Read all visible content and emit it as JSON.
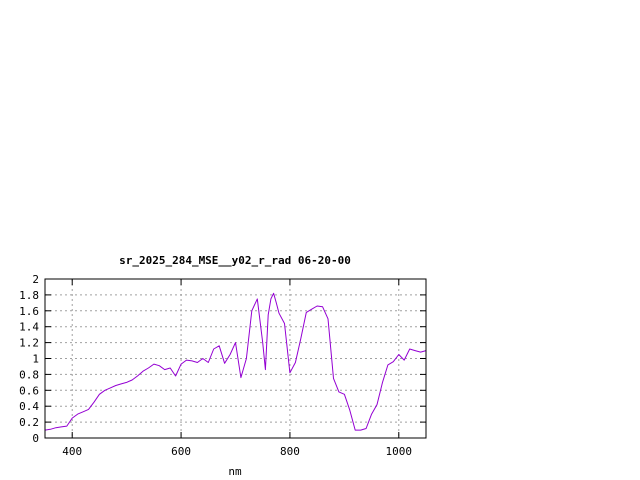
{
  "chart_data": {
    "type": "line",
    "title": "sr_2025_284_MSE__y02_r_rad 06-20-00",
    "xlabel": "nm",
    "ylabel": "",
    "xlim": [
      350,
      1050
    ],
    "ylim": [
      0,
      2
    ],
    "x_ticks": [
      400,
      600,
      800,
      1000
    ],
    "x_tick_labels": [
      "400",
      "600",
      "800",
      "1000"
    ],
    "y_ticks": [
      0,
      0.2,
      0.4,
      0.6,
      0.8,
      1,
      1.2,
      1.4,
      1.6,
      1.8,
      2
    ],
    "y_tick_labels": [
      "0",
      "0.2",
      "0.4",
      "0.6",
      "0.8",
      "1",
      "1.2",
      "1.4",
      "1.6",
      "1.8",
      "2"
    ],
    "grid": true,
    "legend": "none",
    "line_color": "#9400d3",
    "series": [
      {
        "x": [
          350,
          360,
          370,
          380,
          390,
          400,
          410,
          420,
          430,
          440,
          450,
          460,
          470,
          480,
          490,
          500,
          510,
          520,
          530,
          540,
          550,
          560,
          570,
          580,
          590,
          600,
          610,
          620,
          630,
          640,
          650,
          660,
          670,
          680,
          690,
          700,
          710,
          720,
          730,
          740,
          750,
          755,
          760,
          765,
          770,
          775,
          780,
          790,
          800,
          810,
          820,
          830,
          840,
          850,
          860,
          870,
          880,
          890,
          900,
          910,
          920,
          930,
          940,
          950,
          960,
          970,
          980,
          990,
          1000,
          1010,
          1020,
          1030,
          1040,
          1050
        ],
        "y": [
          0.1,
          0.11,
          0.13,
          0.14,
          0.15,
          0.25,
          0.3,
          0.33,
          0.36,
          0.45,
          0.55,
          0.6,
          0.63,
          0.66,
          0.68,
          0.7,
          0.73,
          0.78,
          0.84,
          0.88,
          0.93,
          0.91,
          0.86,
          0.88,
          0.78,
          0.93,
          0.98,
          0.97,
          0.95,
          1.0,
          0.95,
          1.12,
          1.16,
          0.94,
          1.05,
          1.2,
          0.76,
          1.0,
          1.6,
          1.75,
          1.2,
          0.86,
          1.55,
          1.75,
          1.82,
          1.7,
          1.57,
          1.44,
          0.82,
          0.95,
          1.25,
          1.58,
          1.62,
          1.66,
          1.65,
          1.5,
          0.75,
          0.58,
          0.55,
          0.35,
          0.1,
          0.1,
          0.12,
          0.3,
          0.42,
          0.7,
          0.92,
          0.96,
          1.05,
          0.98,
          1.12,
          1.1,
          1.08,
          1.1
        ]
      }
    ]
  }
}
